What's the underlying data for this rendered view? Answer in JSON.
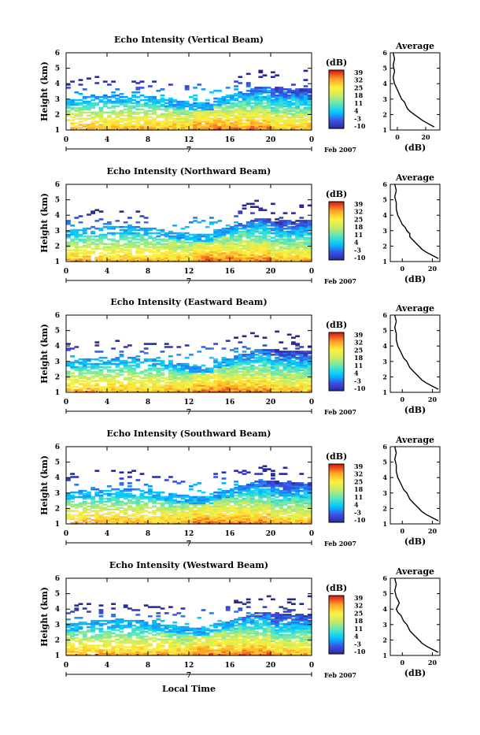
{
  "chart_data": [
    {
      "type": "heatmap",
      "title": "Echo Intensity (Vertical Beam)",
      "ylabel": "Height (km)",
      "xticks": [
        "0",
        "4",
        "8",
        "12",
        "16",
        "20",
        "0"
      ],
      "yticks": [
        "1",
        "2",
        "3",
        "4",
        "5",
        "6"
      ],
      "xlim": [
        0,
        24
      ],
      "ylim": [
        1,
        6
      ],
      "date_day": "7",
      "date_label": "Feb 2007",
      "colorbar": {
        "unit": "(dB)",
        "ticks": [
          "39",
          "32",
          "25",
          "18",
          "11",
          "4",
          "-3",
          "-10"
        ]
      },
      "avg": {
        "title": "Average",
        "xlabel": "(dB)",
        "xticks": [
          "0",
          "20"
        ],
        "yticks": [
          "1",
          "2",
          "3",
          "4",
          "5",
          "6"
        ],
        "xlim": [
          -5,
          30
        ],
        "x": [
          26,
          22,
          18,
          15,
          12,
          9,
          7,
          6,
          5,
          3,
          2,
          1,
          0,
          -1,
          -2,
          -3,
          -2,
          -3,
          -2,
          -3
        ],
        "y": [
          1.2,
          1.4,
          1.6,
          1.8,
          2.0,
          2.2,
          2.4,
          2.6,
          2.8,
          3.0,
          3.2,
          3.4,
          3.6,
          3.8,
          4.0,
          4.4,
          4.8,
          5.2,
          5.6,
          6.0
        ]
      }
    },
    {
      "type": "heatmap",
      "title": "Echo Intensity (Northward Beam)",
      "ylabel": "Height (km)",
      "xticks": [
        "0",
        "4",
        "8",
        "12",
        "16",
        "20",
        "0"
      ],
      "yticks": [
        "1",
        "2",
        "3",
        "4",
        "5",
        "6"
      ],
      "xlim": [
        0,
        24
      ],
      "ylim": [
        1,
        6
      ],
      "date_day": "7",
      "date_label": "Feb 2007",
      "colorbar": {
        "unit": "(dB)",
        "ticks": [
          "39",
          "32",
          "25",
          "18",
          "11",
          "4",
          "-3",
          "-10"
        ]
      },
      "avg": {
        "title": "Average",
        "xlabel": "(dB)",
        "xticks": [
          "0",
          "20"
        ],
        "yticks": [
          "1",
          "2",
          "3",
          "4",
          "5",
          "6"
        ],
        "xlim": [
          -8,
          25
        ],
        "x": [
          24,
          20,
          16,
          13,
          11,
          9,
          7,
          5,
          5,
          3,
          2,
          0,
          -1,
          -2,
          -3,
          -4,
          -4,
          -5,
          -4,
          -5
        ],
        "y": [
          1.2,
          1.4,
          1.6,
          1.8,
          2.0,
          2.2,
          2.4,
          2.6,
          2.8,
          3.0,
          3.2,
          3.4,
          3.6,
          3.8,
          4.0,
          4.4,
          4.8,
          5.2,
          5.6,
          6.0
        ]
      }
    },
    {
      "type": "heatmap",
      "title": "Echo Intensity (Eastward Beam)",
      "ylabel": "Height (km)",
      "xticks": [
        "0",
        "4",
        "8",
        "12",
        "16",
        "20",
        "0"
      ],
      "yticks": [
        "1",
        "2",
        "3",
        "4",
        "5",
        "6"
      ],
      "xlim": [
        0,
        24
      ],
      "ylim": [
        1,
        6
      ],
      "date_day": "7",
      "date_label": "Feb 2007",
      "colorbar": {
        "unit": "(dB)",
        "ticks": [
          "39",
          "32",
          "25",
          "18",
          "11",
          "4",
          "-3",
          "-10"
        ]
      },
      "avg": {
        "title": "Average",
        "xlabel": "(dB)",
        "xticks": [
          "0",
          "20"
        ],
        "yticks": [
          "1",
          "2",
          "3",
          "4",
          "5",
          "6"
        ],
        "xlim": [
          -8,
          25
        ],
        "x": [
          24,
          20,
          16,
          13,
          11,
          9,
          7,
          5,
          4,
          3,
          1,
          0,
          -1,
          -2,
          -3,
          -4,
          -4,
          -5,
          -4,
          -5
        ],
        "y": [
          1.2,
          1.4,
          1.6,
          1.8,
          2.0,
          2.2,
          2.4,
          2.6,
          2.8,
          3.0,
          3.2,
          3.4,
          3.6,
          3.8,
          4.0,
          4.4,
          4.8,
          5.2,
          5.6,
          6.0
        ]
      }
    },
    {
      "type": "heatmap",
      "title": "Echo Intensity (Southward Beam)",
      "ylabel": "Height (km)",
      "xticks": [
        "0",
        "4",
        "8",
        "12",
        "16",
        "20",
        "0"
      ],
      "yticks": [
        "1",
        "2",
        "3",
        "4",
        "5",
        "6"
      ],
      "xlim": [
        0,
        24
      ],
      "ylim": [
        1,
        6
      ],
      "date_day": "7",
      "date_label": "Feb 2007",
      "colorbar": {
        "unit": "(dB)",
        "ticks": [
          "39",
          "32",
          "25",
          "18",
          "11",
          "4",
          "-3",
          "-10"
        ]
      },
      "avg": {
        "title": "Average",
        "xlabel": "(dB)",
        "xticks": [
          "0",
          "20"
        ],
        "yticks": [
          "1",
          "2",
          "3",
          "4",
          "5",
          "6"
        ],
        "xlim": [
          -8,
          25
        ],
        "x": [
          24,
          20,
          16,
          13,
          11,
          9,
          7,
          5,
          4,
          3,
          1,
          0,
          -1,
          -2,
          -3,
          -4,
          -4,
          -5,
          -4,
          -5
        ],
        "y": [
          1.2,
          1.4,
          1.6,
          1.8,
          2.0,
          2.2,
          2.4,
          2.6,
          2.8,
          3.0,
          3.2,
          3.4,
          3.6,
          3.8,
          4.0,
          4.4,
          4.8,
          5.2,
          5.6,
          6.0
        ]
      }
    },
    {
      "type": "heatmap",
      "title": "Echo Intensity (Westward Beam)",
      "ylabel": "Height (km)",
      "xticks": [
        "0",
        "4",
        "8",
        "12",
        "16",
        "20",
        "0"
      ],
      "yticks": [
        "1",
        "2",
        "3",
        "4",
        "5",
        "6"
      ],
      "xlim": [
        0,
        24
      ],
      "ylim": [
        1,
        6
      ],
      "date_day": "7",
      "date_label": "Feb 2007",
      "colorbar": {
        "unit": "(dB)",
        "ticks": [
          "39",
          "32",
          "25",
          "18",
          "11",
          "4",
          "-3",
          "-10"
        ]
      },
      "avg": {
        "title": "Average",
        "xlabel": "(dB)",
        "xticks": [
          "0",
          "20"
        ],
        "yticks": [
          "1",
          "2",
          "3",
          "4",
          "5",
          "6"
        ],
        "xlim": [
          -8,
          25
        ],
        "x": [
          24,
          20,
          16,
          13,
          11,
          9,
          7,
          5,
          4,
          3,
          1,
          0,
          -1,
          -3,
          -4,
          -2,
          -4,
          -5,
          -4,
          -5
        ],
        "y": [
          1.2,
          1.4,
          1.6,
          1.8,
          2.0,
          2.2,
          2.4,
          2.6,
          2.8,
          3.0,
          3.2,
          3.4,
          3.6,
          3.8,
          4.0,
          4.4,
          4.8,
          5.2,
          5.6,
          6.0
        ]
      }
    }
  ],
  "xlabel": "Local Time"
}
